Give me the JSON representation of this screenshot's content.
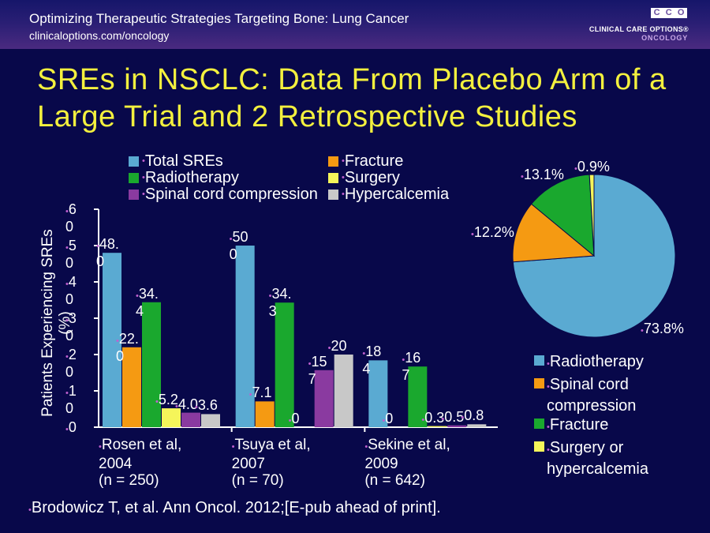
{
  "header": {
    "title": "Optimizing Therapeutic Strategies Targeting Bone: Lung Cancer",
    "url": "clinicaloptions.com/oncology",
    "logo_letters": [
      "C",
      "C",
      "O"
    ],
    "logo_line1": "CLINICAL CARE OPTIONS®",
    "logo_line2": "ONCOLOGY"
  },
  "slide": {
    "title": "SREs in NSCLC: Data From Placebo Arm of a Large Trial and 2 Retrospective Studies"
  },
  "citation": "Brodowicz T, et al. Ann Oncol. 2012;[E-pub ahead of print].",
  "chart_data": [
    {
      "type": "bar",
      "ylabel": "Patients Experiencing SREs (%)",
      "ylim": [
        0,
        60
      ],
      "yticks": [
        "0",
        "1\n0",
        "2\n0",
        "3\n0",
        "4\n0",
        "5\n0",
        "6\n0"
      ],
      "ytick_values": [
        0,
        10,
        20,
        30,
        40,
        50,
        60
      ],
      "legend_position": "top",
      "categories": [
        "Rosen et al,\n2004\n(n = 250)",
        "Tsuya et al,\n2007\n(n = 70)",
        "Sekine et al,\n2009\n(n = 642)"
      ],
      "series": [
        {
          "name": "Total SREs",
          "color": "#5aaad2",
          "values": [
            48.0,
            50.0,
            18.4
          ],
          "labels": [
            "48.\n0",
            "50\n0",
            "18\n4"
          ]
        },
        {
          "name": "Fracture",
          "color": "#f59a12",
          "values": [
            22.0,
            7.1,
            0
          ],
          "labels": [
            "22.\n0",
            "7.1",
            "0"
          ]
        },
        {
          "name": "Radiotherapy",
          "color": "#1aa82e",
          "values": [
            34.4,
            34.3,
            16.7
          ],
          "labels": [
            "34.\n4",
            "34.\n3",
            "16\n7"
          ]
        },
        {
          "name": "Surgery",
          "color": "#f5f55a",
          "values": [
            5.2,
            0,
            0.3
          ],
          "labels": [
            "5.2",
            "0",
            "0.3"
          ]
        },
        {
          "name": "Spinal cord compression",
          "color": "#8a3aa0",
          "values": [
            4.0,
            15.7,
            0.5
          ],
          "labels": [
            "4.0",
            "15\n7",
            "0.5"
          ]
        },
        {
          "name": "Hypercalcemia",
          "color": "#c8c8c8",
          "values": [
            3.6,
            20.0,
            0.8
          ],
          "labels": [
            "3.6",
            "20",
            "0.8"
          ]
        }
      ]
    },
    {
      "type": "pie",
      "legend_position": "bottom",
      "series": [
        {
          "name": "Radiotherapy",
          "legend_label": "Radiotherapy",
          "value": 73.8,
          "label": "73.8%",
          "color": "#5aaad2"
        },
        {
          "name": "Spinal cord compression",
          "legend_label": "Spinal cord compression",
          "value": 12.2,
          "label": "12.2%",
          "color": "#f59a12"
        },
        {
          "name": "Fracture",
          "legend_label": "Fracture",
          "value": 13.1,
          "label": "13.1%",
          "color": "#1aa82e"
        },
        {
          "name": "Surgery or hypercalcemia",
          "legend_label": "Surgery or hypercalcemia",
          "value": 0.9,
          "label": "0.9%",
          "color": "#f5f55a"
        }
      ]
    }
  ]
}
